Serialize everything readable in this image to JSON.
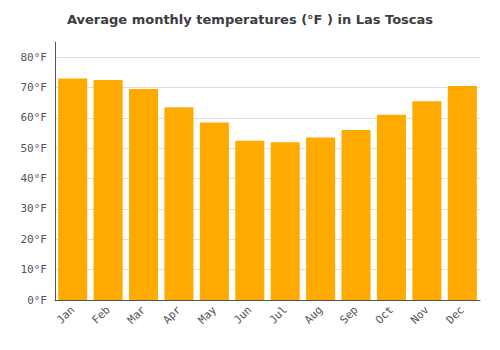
{
  "chart_data": {
    "type": "bar",
    "title": "Average monthly temperatures (°F ) in Las Toscas",
    "categories": [
      "Jan",
      "Feb",
      "Mar",
      "Apr",
      "May",
      "Jun",
      "Jul",
      "Aug",
      "Sep",
      "Oct",
      "Nov",
      "Dec"
    ],
    "values": [
      73,
      72.5,
      69.5,
      63.5,
      58.5,
      52.5,
      52,
      53.5,
      56,
      61,
      65.5,
      70.5
    ],
    "color": "#FFAA00",
    "ylim": [
      0,
      85
    ],
    "yticks": [
      {
        "value": 0,
        "label": "0°F"
      },
      {
        "value": 10,
        "label": "10°F"
      },
      {
        "value": 20,
        "label": "20°F"
      },
      {
        "value": 30,
        "label": "30°F"
      },
      {
        "value": 40,
        "label": "40°F"
      },
      {
        "value": 50,
        "label": "50°F"
      },
      {
        "value": 60,
        "label": "60°F"
      },
      {
        "value": 70,
        "label": "70°F"
      },
      {
        "value": 80,
        "label": "80°F"
      }
    ],
    "grid": true
  }
}
